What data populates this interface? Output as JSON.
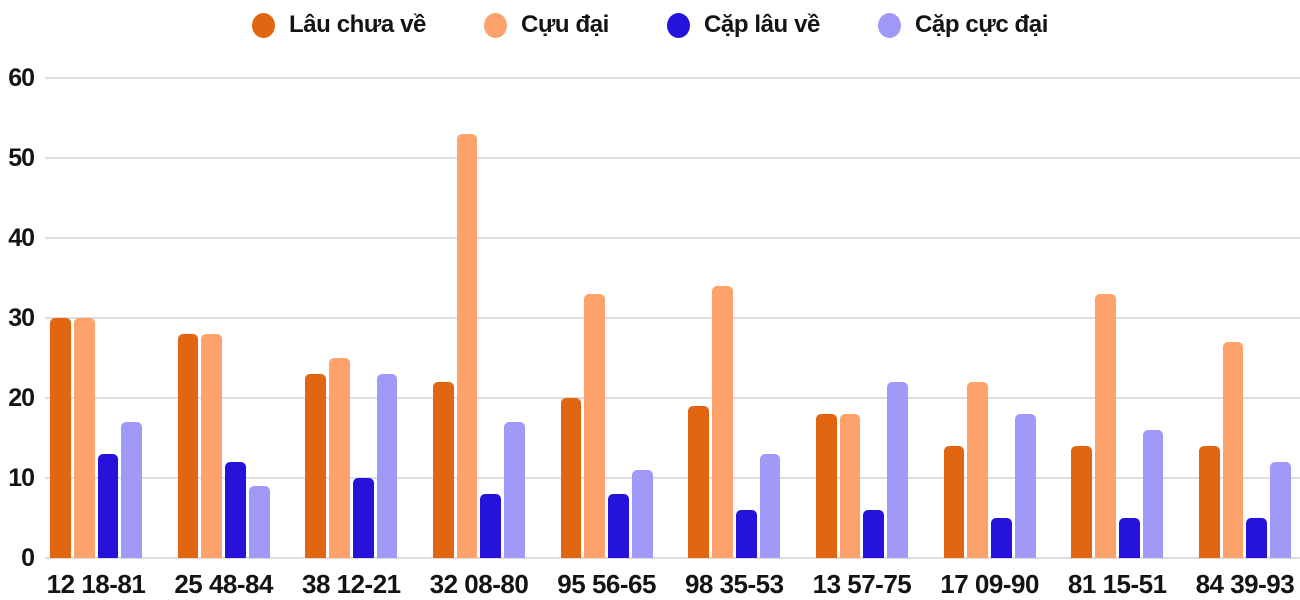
{
  "page": {
    "background": "#ffffff",
    "text_color": "#141414"
  },
  "chart_data": {
    "type": "bar",
    "title": "",
    "xlabel": "",
    "ylabel": "",
    "categories": [
      "12 18-81",
      "25 48-84",
      "38 12-21",
      "32 08-80",
      "95 56-65",
      "98 35-53",
      "13 57-75",
      "17 09-90",
      "81 15-51",
      "84 39-93"
    ],
    "series": [
      {
        "name": "Lâu chưa về",
        "color": "#E2650F",
        "values": [
          30,
          28,
          23,
          22,
          20,
          19,
          18,
          14,
          14,
          14
        ]
      },
      {
        "name": "Cựu đại",
        "color": "#FDA26B",
        "values": [
          30,
          28,
          25,
          53,
          33,
          34,
          18,
          22,
          33,
          27
        ]
      },
      {
        "name": "Cặp lâu về",
        "color": "#2613DB",
        "values": [
          13,
          12,
          10,
          8,
          8,
          6,
          6,
          5,
          5,
          5
        ]
      },
      {
        "name": "Cặp cực đại",
        "color": "#A099F8",
        "values": [
          17,
          9,
          23,
          17,
          11,
          13,
          22,
          18,
          16,
          12
        ]
      }
    ],
    "ylim": [
      0,
      60
    ],
    "yticks": [
      0,
      10,
      20,
      30,
      40,
      50,
      60
    ],
    "grid": true,
    "gridline_color": "#DDDDDD",
    "legend_position": "top-center"
  }
}
